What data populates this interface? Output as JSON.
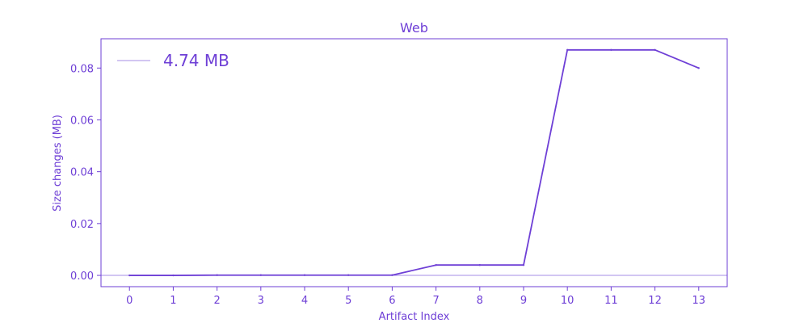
{
  "theme": {
    "accent": "#6e3fd6",
    "baseline": "#a58de6",
    "background": "#ffffff"
  },
  "chart_data": {
    "type": "line",
    "title": "Web",
    "xlabel": "Artifact Index",
    "ylabel": "Size changes (MB)",
    "x": [
      0,
      1,
      2,
      3,
      4,
      5,
      6,
      7,
      8,
      9,
      10,
      11,
      12,
      13
    ],
    "series": [
      {
        "values": [
          0.0,
          0.0,
          0.0001,
          0.0001,
          0.0001,
          0.0001,
          0.0001,
          0.004,
          0.004,
          0.004,
          0.087,
          0.087,
          0.087,
          0.08
        ]
      }
    ],
    "baseline_value": 0.0,
    "legend": {
      "position": "top-left",
      "entries": [
        "4.74 MB"
      ]
    },
    "xticks": [
      "0",
      "1",
      "2",
      "3",
      "4",
      "5",
      "6",
      "7",
      "8",
      "9",
      "10",
      "11",
      "12",
      "13"
    ],
    "yticks": [
      "0.00",
      "0.02",
      "0.04",
      "0.06",
      "0.08"
    ],
    "xlim": [
      -0.65,
      13.65
    ],
    "ylim": [
      -0.00435,
      0.0913
    ],
    "grid": false
  }
}
